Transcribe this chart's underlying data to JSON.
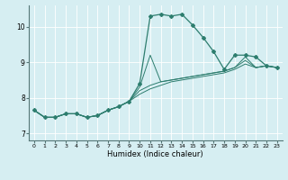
{
  "title": "",
  "xlabel": "Humidex (Indice chaleur)",
  "ylabel": "",
  "background_color": "#d6eef2",
  "line_color": "#2d7d6e",
  "grid_color": "#ffffff",
  "xlim": [
    -0.5,
    23.5
  ],
  "ylim": [
    6.8,
    10.6
  ],
  "yticks": [
    7,
    8,
    9,
    10
  ],
  "xticks": [
    0,
    1,
    2,
    3,
    4,
    5,
    6,
    7,
    8,
    9,
    10,
    11,
    12,
    13,
    14,
    15,
    16,
    17,
    18,
    19,
    20,
    21,
    22,
    23
  ],
  "series": [
    [
      7.65,
      7.45,
      7.45,
      7.55,
      7.55,
      7.45,
      7.5,
      7.65,
      7.75,
      7.9,
      8.4,
      10.3,
      10.35,
      10.3,
      10.35,
      10.05,
      9.7,
      9.3,
      8.8,
      9.2,
      9.2,
      9.15,
      8.9,
      8.85
    ],
    [
      7.65,
      7.45,
      7.45,
      7.55,
      7.55,
      7.45,
      7.5,
      7.65,
      7.75,
      7.9,
      8.3,
      9.2,
      8.45,
      8.5,
      8.55,
      8.6,
      8.65,
      8.7,
      8.75,
      8.85,
      9.15,
      8.85,
      8.9,
      8.85
    ],
    [
      7.65,
      7.45,
      7.45,
      7.55,
      7.55,
      7.45,
      7.5,
      7.65,
      7.75,
      7.9,
      8.2,
      8.35,
      8.45,
      8.5,
      8.55,
      8.6,
      8.65,
      8.7,
      8.75,
      8.85,
      9.05,
      8.85,
      8.9,
      8.85
    ],
    [
      7.65,
      7.45,
      7.45,
      7.55,
      7.55,
      7.45,
      7.5,
      7.65,
      7.75,
      7.9,
      8.1,
      8.25,
      8.35,
      8.45,
      8.5,
      8.55,
      8.6,
      8.65,
      8.7,
      8.8,
      8.95,
      8.85,
      8.9,
      8.85
    ]
  ]
}
